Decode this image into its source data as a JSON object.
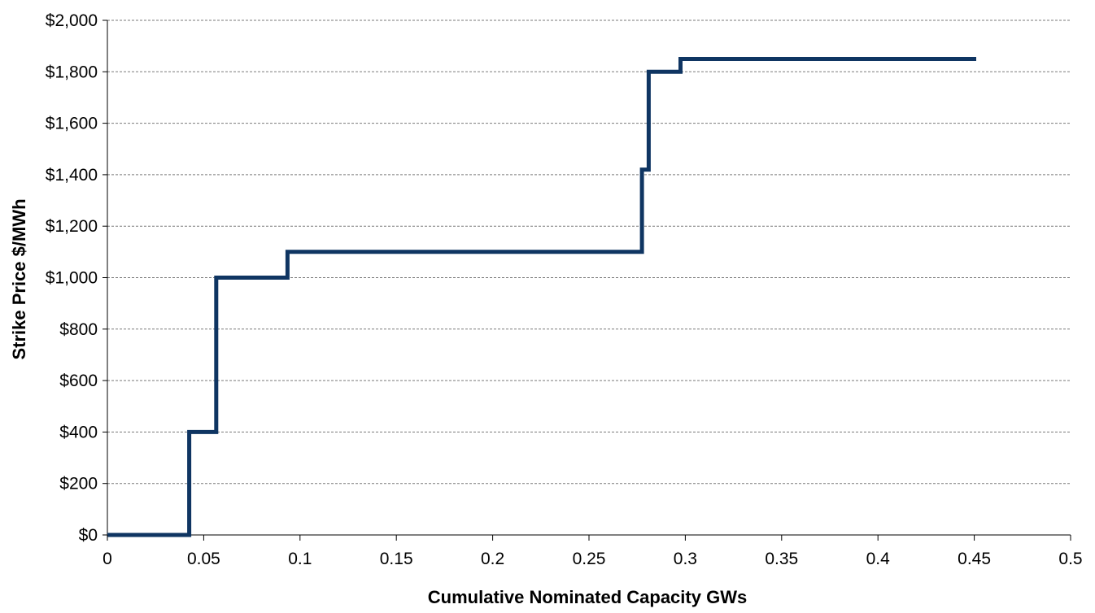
{
  "chart_data": {
    "type": "line",
    "step": true,
    "title": "",
    "xlabel": "Cumulative Nominated Capacity GWs",
    "ylabel": "Strike Price $/MWh",
    "xlim": [
      0,
      0.5
    ],
    "ylim": [
      0,
      2000
    ],
    "x_ticks": [
      0,
      0.05,
      0.1,
      0.15,
      0.2,
      0.25,
      0.3,
      0.35,
      0.4,
      0.45,
      0.5
    ],
    "x_tick_labels": [
      "0",
      "0.05",
      "0.1",
      "0.15",
      "0.2",
      "0.25",
      "0.3",
      "0.35",
      "0.4",
      "0.45",
      "0.5"
    ],
    "y_ticks": [
      0,
      200,
      400,
      600,
      800,
      1000,
      1200,
      1400,
      1600,
      1800,
      2000
    ],
    "y_tick_labels": [
      "$0",
      "$200",
      "$400",
      "$600",
      "$800",
      "$1,000",
      "$1,200",
      "$1,400",
      "$1,600",
      "$1,800",
      "$2,000"
    ],
    "grid": "horizontal-dashed",
    "legend": "none",
    "series": [
      {
        "color": "#0f3562",
        "points": [
          [
            0,
            0
          ],
          [
            0.0425,
            0
          ],
          [
            0.0425,
            400
          ],
          [
            0.0565,
            400
          ],
          [
            0.0565,
            1000
          ],
          [
            0.0935,
            1000
          ],
          [
            0.0935,
            1100
          ],
          [
            0.2775,
            1100
          ],
          [
            0.2775,
            1420
          ],
          [
            0.281,
            1420
          ],
          [
            0.281,
            1800
          ],
          [
            0.2975,
            1800
          ],
          [
            0.2975,
            1850
          ],
          [
            0.451,
            1850
          ]
        ]
      }
    ]
  }
}
